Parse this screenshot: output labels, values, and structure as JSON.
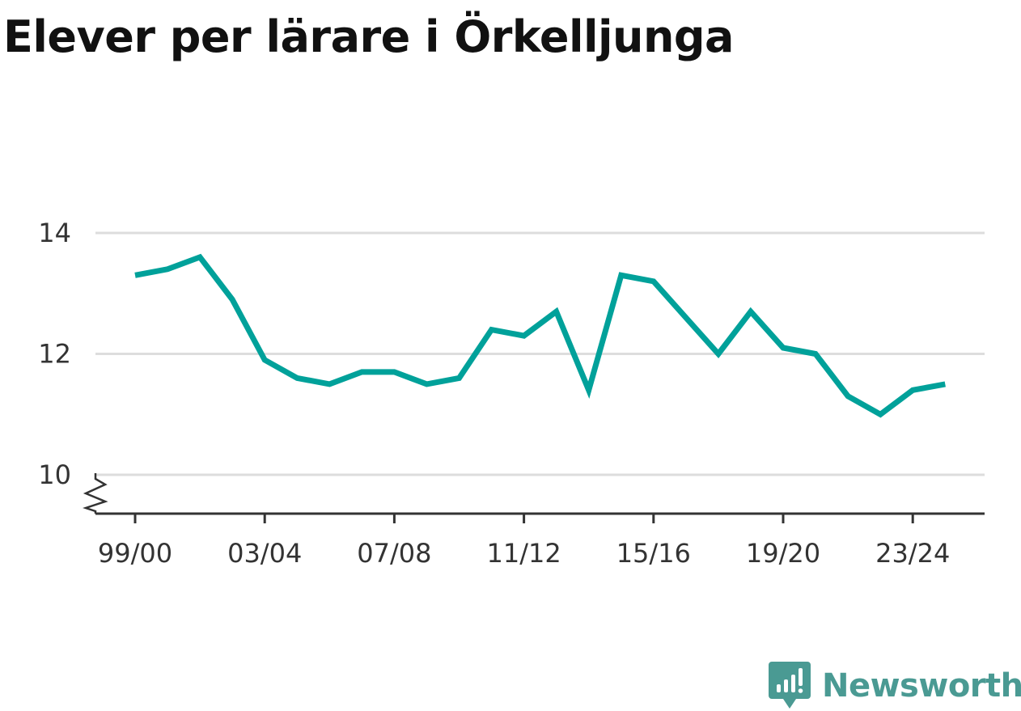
{
  "chart_data": {
    "type": "line",
    "title": "Elever per lärare i Örkelljunga",
    "xlabel": "",
    "ylabel": "",
    "ylim": [
      10,
      14
    ],
    "yticks": [
      10,
      12,
      14
    ],
    "y_axis_break": true,
    "grid": "horizontal",
    "legend": "none",
    "x": [
      "99/00",
      "00/01",
      "01/02",
      "02/03",
      "03/04",
      "04/05",
      "05/06",
      "06/07",
      "07/08",
      "08/09",
      "09/10",
      "10/11",
      "11/12",
      "12/13",
      "13/14",
      "14/15",
      "15/16",
      "16/17",
      "17/18",
      "18/19",
      "19/20",
      "20/21",
      "21/22",
      "22/23",
      "23/24",
      "24/25"
    ],
    "xticks": [
      "99/00",
      "03/04",
      "07/08",
      "11/12",
      "15/16",
      "19/20",
      "23/24"
    ],
    "series": [
      {
        "values": [
          13.3,
          13.4,
          13.6,
          12.9,
          11.9,
          11.6,
          11.5,
          11.7,
          11.7,
          11.5,
          11.6,
          12.4,
          12.3,
          12.7,
          11.4,
          13.3,
          13.2,
          12.6,
          12.0,
          12.7,
          12.1,
          12.0,
          11.3,
          11.0,
          11.4,
          11.5
        ],
        "color": "#00a19a"
      }
    ]
  },
  "brand": {
    "name": "Newsworthy",
    "icon": "newsworthy-logo-icon",
    "color": "#4a9a93"
  },
  "colors": {
    "line": "#00a19a",
    "grid": "#dddddd",
    "axis": "#333333",
    "text": "#111111"
  }
}
